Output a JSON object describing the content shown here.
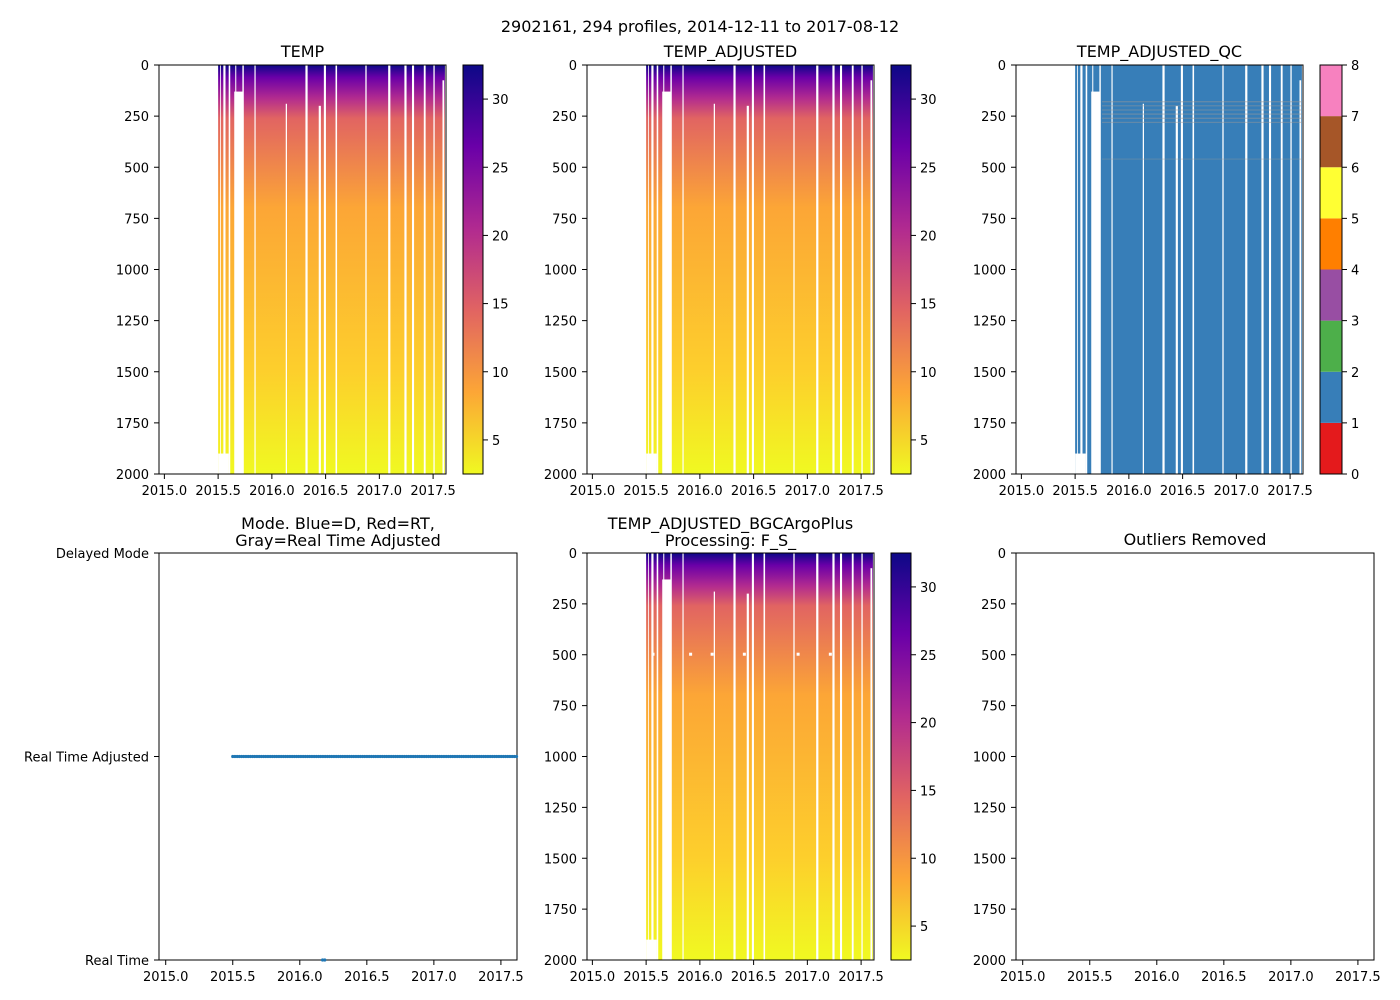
{
  "figure": {
    "suptitle": "2902161, 294 profiles, 2014-12-11 to 2017-08-12"
  },
  "colors": {
    "cmap_plasma_r": [
      "#f0f921",
      "#fca636",
      "#e16462",
      "#b12a90",
      "#6a00a8",
      "#0d0887"
    ],
    "qc_colors": [
      "#e41a1c",
      "#377eb8",
      "#4daf4a",
      "#984ea3",
      "#ff7f00",
      "#ffff33",
      "#a65628",
      "#f781bf",
      "#999999"
    ],
    "mode_point": "#1f77b4"
  },
  "chart_data": [
    {
      "id": "temp",
      "type": "heatmap",
      "title": "TEMP",
      "xlim": [
        2014.95,
        2017.62
      ],
      "ylim": [
        2000,
        0
      ],
      "xticks": [
        "2015.0",
        "2015.5",
        "2016.0",
        "2016.5",
        "2017.0",
        "2017.5"
      ],
      "yticks": [
        "0",
        "250",
        "500",
        "750",
        "1000",
        "1250",
        "1500",
        "1750",
        "2000"
      ],
      "data_x_range": [
        2015.5,
        2017.61
      ],
      "colorbar": {
        "range": [
          2.5,
          32.5
        ],
        "ticks": [
          "5",
          "10",
          "15",
          "20",
          "25",
          "30"
        ]
      }
    },
    {
      "id": "temp_adjusted",
      "type": "heatmap",
      "title": "TEMP_ADJUSTED",
      "xlim": [
        2014.95,
        2017.62
      ],
      "ylim": [
        2000,
        0
      ],
      "xticks": [
        "2015.0",
        "2015.5",
        "2016.0",
        "2016.5",
        "2017.0",
        "2017.5"
      ],
      "yticks": [
        "0",
        "250",
        "500",
        "750",
        "1000",
        "1250",
        "1500",
        "1750",
        "2000"
      ],
      "data_x_range": [
        2015.5,
        2017.61
      ],
      "colorbar": {
        "range": [
          2.5,
          32.5
        ],
        "ticks": [
          "5",
          "10",
          "15",
          "20",
          "25",
          "30"
        ]
      }
    },
    {
      "id": "temp_adjusted_qc",
      "type": "heatmap",
      "title": "TEMP_ADJUSTED_QC",
      "xlim": [
        2014.95,
        2017.62
      ],
      "ylim": [
        2000,
        0
      ],
      "xticks": [
        "2015.0",
        "2015.5",
        "2016.0",
        "2016.5",
        "2017.0",
        "2017.5"
      ],
      "yticks": [
        "0",
        "250",
        "500",
        "750",
        "1000",
        "1250",
        "1500",
        "1750",
        "2000"
      ],
      "data_x_range": [
        2015.5,
        2017.61
      ],
      "dominant_qc_flag": 1,
      "colorbar": {
        "range": [
          0,
          8
        ],
        "ticks": [
          "0",
          "1",
          "2",
          "3",
          "4",
          "5",
          "6",
          "7",
          "8"
        ]
      }
    },
    {
      "id": "mode",
      "type": "scatter",
      "title": "Mode. Blue=D, Red=RT,\nGray=Real Time Adjusted",
      "xlim": [
        2014.95,
        2017.62
      ],
      "ylim": [
        0,
        2
      ],
      "xticks": [
        "2015.0",
        "2015.5",
        "2016.0",
        "2016.5",
        "2017.0",
        "2017.5"
      ],
      "ytick_labels": [
        "Real Time",
        "Real Time Adjusted",
        "Delayed Mode"
      ],
      "series": [
        {
          "name": "Real Time Adjusted",
          "y": 1,
          "x_range": [
            2015.5,
            2017.62
          ]
        },
        {
          "name": "Real Time",
          "y": 0,
          "x_range": [
            2016.17,
            2016.2
          ]
        }
      ]
    },
    {
      "id": "temp_bgc",
      "type": "heatmap",
      "title": "TEMP_ADJUSTED_BGCArgoPlus\nProcessing: F_S_",
      "xlim": [
        2014.95,
        2017.62
      ],
      "ylim": [
        2000,
        0
      ],
      "xticks": [
        "2015.0",
        "2015.5",
        "2016.0",
        "2016.5",
        "2017.0",
        "2017.5"
      ],
      "yticks": [
        "0",
        "250",
        "500",
        "750",
        "1000",
        "1250",
        "1500",
        "1750",
        "2000"
      ],
      "data_x_range": [
        2015.5,
        2017.61
      ],
      "colorbar": {
        "range": [
          2.5,
          32.5
        ],
        "ticks": [
          "5",
          "10",
          "15",
          "20",
          "25",
          "30"
        ]
      }
    },
    {
      "id": "outliers",
      "type": "scatter",
      "title": "Outliers Removed",
      "xlim": [
        2014.95,
        2017.62
      ],
      "ylim": [
        2000,
        0
      ],
      "xticks": [
        "2015.0",
        "2015.5",
        "2016.0",
        "2016.5",
        "2017.0",
        "2017.5"
      ],
      "yticks": [
        "0",
        "250",
        "500",
        "750",
        "1000",
        "1250",
        "1500",
        "1750",
        "2000"
      ],
      "series": []
    }
  ]
}
